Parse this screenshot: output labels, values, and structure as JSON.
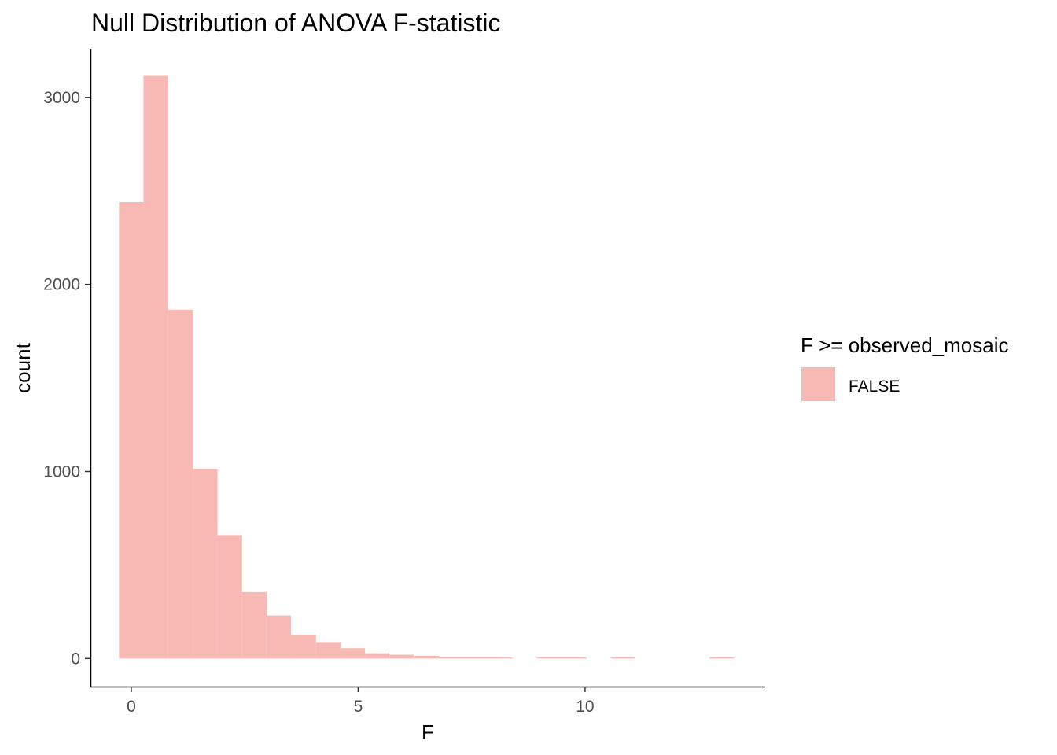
{
  "chart_data": {
    "type": "bar",
    "title": "Null Distribution of ANOVA F-statistic",
    "xlabel": "F",
    "ylabel": "count",
    "xlim": [
      -0.9,
      13.97
    ],
    "ylim": [
      -150,
      3260
    ],
    "x_ticks": [
      {
        "value": 0,
        "label": "0"
      },
      {
        "value": 5,
        "label": "5"
      },
      {
        "value": 10,
        "label": "10"
      }
    ],
    "y_ticks": [
      {
        "value": 0,
        "label": "0"
      },
      {
        "value": 1000,
        "label": "1000"
      },
      {
        "value": 2000,
        "label": "2000"
      },
      {
        "value": 3000,
        "label": "3000"
      }
    ],
    "bin_width": 0.542,
    "bins": [
      {
        "x0": -0.27,
        "x1": 0.27,
        "count": 2440
      },
      {
        "x0": 0.27,
        "x1": 0.81,
        "count": 3115
      },
      {
        "x0": 0.81,
        "x1": 1.36,
        "count": 1865
      },
      {
        "x0": 1.36,
        "x1": 1.9,
        "count": 1015
      },
      {
        "x0": 1.9,
        "x1": 2.44,
        "count": 660
      },
      {
        "x0": 2.44,
        "x1": 2.98,
        "count": 355
      },
      {
        "x0": 2.98,
        "x1": 3.52,
        "count": 230
      },
      {
        "x0": 3.52,
        "x1": 4.07,
        "count": 125
      },
      {
        "x0": 4.07,
        "x1": 4.61,
        "count": 88
      },
      {
        "x0": 4.61,
        "x1": 5.15,
        "count": 55
      },
      {
        "x0": 5.15,
        "x1": 5.69,
        "count": 28
      },
      {
        "x0": 5.69,
        "x1": 6.23,
        "count": 20
      },
      {
        "x0": 6.23,
        "x1": 6.78,
        "count": 14
      },
      {
        "x0": 6.78,
        "x1": 7.32,
        "count": 6
      },
      {
        "x0": 7.32,
        "x1": 7.86,
        "count": 5
      },
      {
        "x0": 7.86,
        "x1": 8.4,
        "count": 4
      },
      {
        "x0": 8.4,
        "x1": 8.94,
        "count": 0
      },
      {
        "x0": 8.94,
        "x1": 9.49,
        "count": 3
      },
      {
        "x0": 9.49,
        "x1": 10.03,
        "count": 3
      },
      {
        "x0": 10.03,
        "x1": 10.57,
        "count": 0
      },
      {
        "x0": 10.57,
        "x1": 11.11,
        "count": 2
      },
      {
        "x0": 11.11,
        "x1": 11.65,
        "count": 0
      },
      {
        "x0": 11.65,
        "x1": 12.2,
        "count": 0
      },
      {
        "x0": 12.2,
        "x1": 12.74,
        "count": 0
      },
      {
        "x0": 12.74,
        "x1": 13.28,
        "count": 2
      }
    ],
    "legend": {
      "title": "F >= observed_mosaic",
      "entries": [
        {
          "label": "FALSE",
          "color": "#F8B9B4"
        }
      ],
      "placement": "right"
    },
    "bar_color": "#F8B9B4",
    "grid": false
  }
}
